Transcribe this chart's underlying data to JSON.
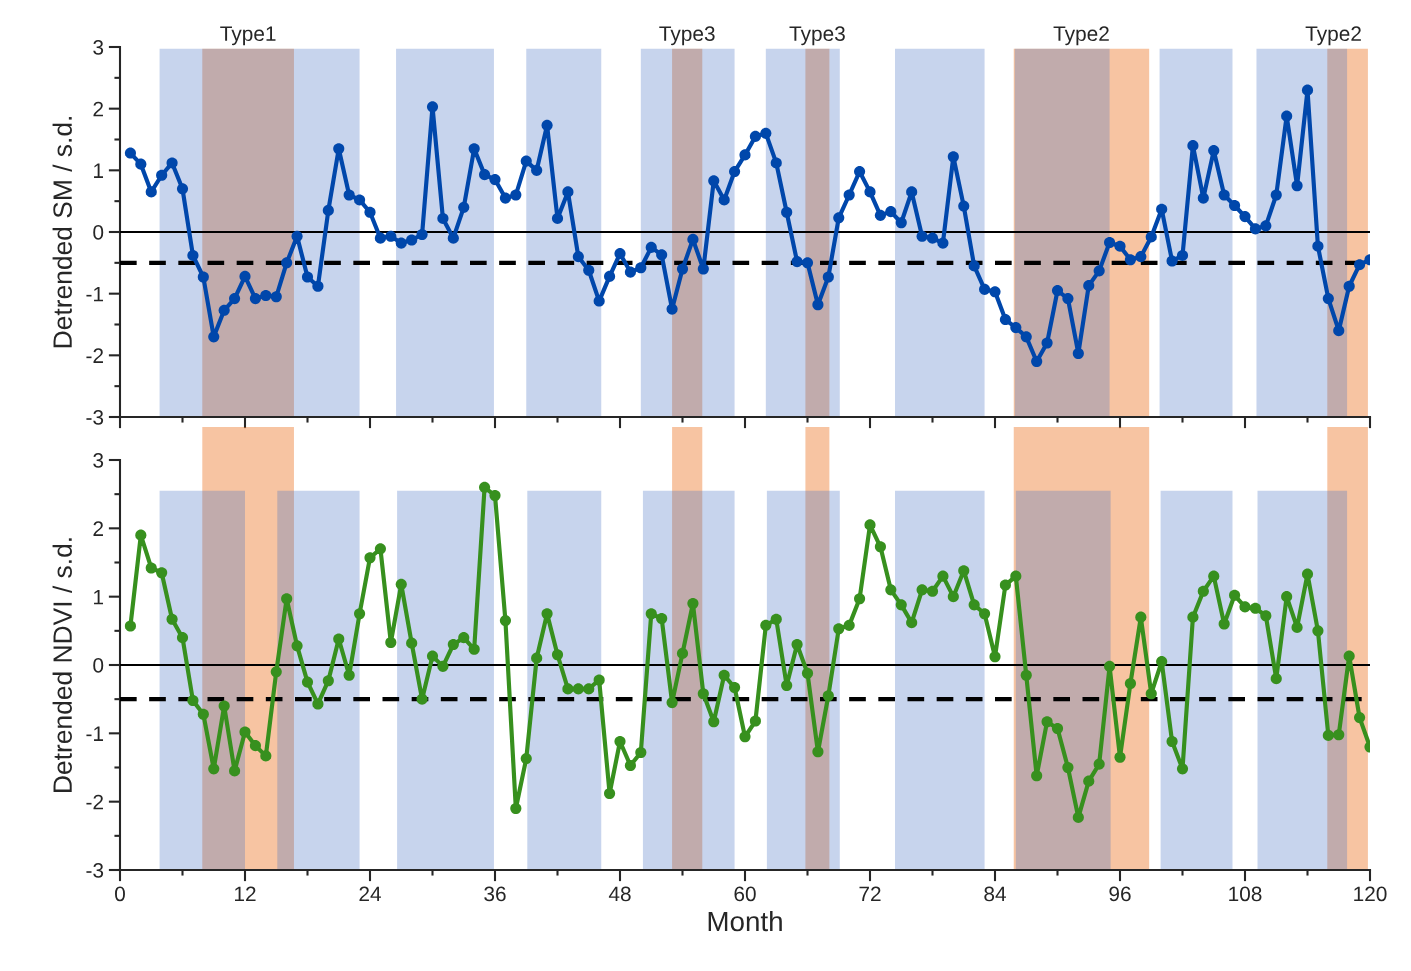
{
  "chart_data": [
    {
      "type": "line",
      "ylabel": "Detrended SM / s.d.",
      "xlim": [
        0,
        120
      ],
      "xticks": [
        0,
        12,
        24,
        36,
        48,
        60,
        72,
        84,
        96,
        108,
        120
      ],
      "ylim": [
        -3,
        3
      ],
      "yticks": [
        -3,
        -2,
        -1,
        0,
        1,
        2,
        3
      ],
      "tick_labels": "y",
      "marker": "circle",
      "line_style": "solid",
      "grid": false,
      "legend": false,
      "x": [
        1,
        2,
        3,
        4,
        5,
        6,
        7,
        8,
        9,
        10,
        11,
        12,
        13,
        14,
        15,
        16,
        17,
        18,
        19,
        20,
        21,
        22,
        23,
        24,
        25,
        26,
        27,
        28,
        29,
        30,
        31,
        32,
        33,
        34,
        35,
        36,
        37,
        38,
        39,
        40,
        41,
        42,
        43,
        44,
        45,
        46,
        47,
        48,
        49,
        50,
        51,
        52,
        53,
        54,
        55,
        56,
        57,
        58,
        59,
        60,
        61,
        62,
        63,
        64,
        65,
        66,
        67,
        68,
        69,
        70,
        71,
        72,
        73,
        74,
        75,
        76,
        77,
        78,
        79,
        80,
        81,
        82,
        83,
        84,
        85,
        86,
        87,
        88,
        89,
        90,
        91,
        92,
        93,
        94,
        95,
        96,
        97,
        98,
        99,
        100,
        101,
        102,
        103,
        104,
        105,
        106,
        107,
        108,
        109,
        110,
        111,
        112,
        113,
        114,
        115,
        116,
        117,
        118,
        119,
        120
      ],
      "series": [
        {
          "color": "#0047ab",
          "values": [
            1.28,
            1.1,
            0.65,
            0.92,
            1.12,
            0.7,
            -0.38,
            -0.73,
            -1.7,
            -1.27,
            -1.08,
            -0.72,
            -1.08,
            -1.03,
            -1.05,
            -0.5,
            -0.07,
            -0.73,
            -0.88,
            0.35,
            1.35,
            0.6,
            0.52,
            0.32,
            -0.1,
            -0.07,
            -0.18,
            -0.13,
            -0.04,
            2.03,
            0.22,
            -0.1,
            0.4,
            1.35,
            0.93,
            0.85,
            0.55,
            0.6,
            1.15,
            1.0,
            1.73,
            0.22,
            0.65,
            -0.4,
            -0.62,
            -1.12,
            -0.72,
            -0.35,
            -0.65,
            -0.58,
            -0.25,
            -0.37,
            -1.25,
            -0.6,
            -0.12,
            -0.6,
            0.83,
            0.52,
            0.98,
            1.25,
            1.55,
            1.6,
            1.12,
            0.32,
            -0.48,
            -0.5,
            -1.18,
            -0.73,
            0.23,
            0.6,
            0.98,
            0.65,
            0.27,
            0.33,
            0.15,
            0.65,
            -0.07,
            -0.1,
            -0.18,
            1.22,
            0.42,
            -0.55,
            -0.93,
            -0.97,
            -1.42,
            -1.55,
            -1.7,
            -2.1,
            -1.8,
            -0.95,
            -1.08,
            -1.97,
            -0.87,
            -0.63,
            -0.17,
            -0.23,
            -0.45,
            -0.4,
            -0.08,
            0.37,
            -0.47,
            -0.38,
            1.4,
            0.55,
            1.32,
            0.6,
            0.43,
            0.25,
            0.05,
            0.1,
            0.6,
            1.88,
            0.75,
            2.3,
            -0.23,
            -1.08,
            -1.6,
            -0.88,
            -0.53,
            -0.45
          ]
        }
      ],
      "ref_lines": [
        {
          "axis": "y",
          "value": 0,
          "color": "#000000",
          "line_style": "solid"
        },
        {
          "axis": "y",
          "value": -0.5,
          "color": "#000000",
          "line_style": "dashed"
        }
      ],
      "bands": [
        {
          "axis": "x",
          "from": 3.8,
          "to": 23.0,
          "color": "#4472c4"
        },
        {
          "axis": "x",
          "from": 26.5,
          "to": 35.9,
          "color": "#4472c4"
        },
        {
          "axis": "x",
          "from": 39.0,
          "to": 46.2,
          "color": "#4472c4"
        },
        {
          "axis": "x",
          "from": 50.0,
          "to": 59.0,
          "color": "#4472c4"
        },
        {
          "axis": "x",
          "from": 62.0,
          "to": 69.1,
          "color": "#4472c4"
        },
        {
          "axis": "x",
          "from": 74.4,
          "to": 83.0,
          "color": "#4472c4"
        },
        {
          "axis": "x",
          "from": 85.9,
          "to": 95.0,
          "color": "#4472c4"
        },
        {
          "axis": "x",
          "from": 99.8,
          "to": 106.8,
          "color": "#4472c4"
        },
        {
          "axis": "x",
          "from": 109.1,
          "to": 117.8,
          "color": "#4472c4"
        },
        {
          "axis": "x",
          "from": 7.9,
          "to": 16.7,
          "color": "#ed7d31"
        },
        {
          "axis": "x",
          "from": 53.0,
          "to": 55.9,
          "color": "#ed7d31"
        },
        {
          "axis": "x",
          "from": 65.8,
          "to": 68.1,
          "color": "#ed7d31"
        },
        {
          "axis": "x",
          "from": 85.8,
          "to": 98.8,
          "color": "#ed7d31"
        },
        {
          "axis": "x",
          "from": 115.9,
          "to": 119.8,
          "color": "#ed7d31"
        }
      ],
      "annotations": [
        "Type1",
        "Type3",
        "Type3",
        "Type2",
        "Type2"
      ]
    },
    {
      "type": "line",
      "ylabel": "Detrended NDVI / s.d.",
      "xlabel": "Month",
      "xlim": [
        0,
        120
      ],
      "xticks": [
        0,
        12,
        24,
        36,
        48,
        60,
        72,
        84,
        96,
        108,
        120
      ],
      "ylim": [
        -3,
        3
      ],
      "yticks": [
        -3,
        -2,
        -1,
        0,
        1,
        2,
        3
      ],
      "marker": "circle",
      "line_style": "solid",
      "grid": false,
      "legend": false,
      "x": [
        1,
        2,
        3,
        4,
        5,
        6,
        7,
        8,
        9,
        10,
        11,
        12,
        13,
        14,
        15,
        16,
        17,
        18,
        19,
        20,
        21,
        22,
        23,
        24,
        25,
        26,
        27,
        28,
        29,
        30,
        31,
        32,
        33,
        34,
        35,
        36,
        37,
        38,
        39,
        40,
        41,
        42,
        43,
        44,
        45,
        46,
        47,
        48,
        49,
        50,
        51,
        52,
        53,
        54,
        55,
        56,
        57,
        58,
        59,
        60,
        61,
        62,
        63,
        64,
        65,
        66,
        67,
        68,
        69,
        70,
        71,
        72,
        73,
        74,
        75,
        76,
        77,
        78,
        79,
        80,
        81,
        82,
        83,
        84,
        85,
        86,
        87,
        88,
        89,
        90,
        91,
        92,
        93,
        94,
        95,
        96,
        97,
        98,
        99,
        100,
        101,
        102,
        103,
        104,
        105,
        106,
        107,
        108,
        109,
        110,
        111,
        112,
        113,
        114,
        115,
        116,
        117,
        118,
        119,
        120
      ],
      "series": [
        {
          "color": "#37901e",
          "values": [
            0.57,
            1.9,
            1.42,
            1.35,
            0.67,
            0.4,
            -0.52,
            -0.72,
            -1.52,
            -0.6,
            -1.55,
            -0.98,
            -1.18,
            -1.33,
            -0.1,
            0.97,
            0.28,
            -0.25,
            -0.57,
            -0.23,
            0.38,
            -0.15,
            0.75,
            1.57,
            1.7,
            0.33,
            1.18,
            0.32,
            -0.5,
            0.13,
            -0.02,
            0.3,
            0.4,
            0.23,
            2.6,
            2.48,
            0.65,
            -2.1,
            -1.37,
            0.1,
            0.75,
            0.15,
            -0.35,
            -0.35,
            -0.35,
            -0.22,
            -1.88,
            -1.12,
            -1.47,
            -1.28,
            0.75,
            0.68,
            -0.55,
            0.17,
            0.9,
            -0.42,
            -0.83,
            -0.15,
            -0.33,
            -1.05,
            -0.82,
            0.58,
            0.67,
            -0.3,
            0.3,
            -0.12,
            -1.27,
            -0.45,
            0.53,
            0.58,
            0.97,
            2.05,
            1.73,
            1.1,
            0.88,
            0.62,
            1.1,
            1.08,
            1.3,
            1.0,
            1.38,
            0.88,
            0.75,
            0.12,
            1.17,
            1.3,
            -0.15,
            -1.62,
            -0.83,
            -0.93,
            -1.5,
            -2.23,
            -1.7,
            -1.45,
            -0.02,
            -1.35,
            -0.27,
            0.7,
            -0.42,
            0.05,
            -1.12,
            -1.52,
            0.7,
            1.08,
            1.3,
            0.6,
            1.02,
            0.85,
            0.83,
            0.72,
            -0.2,
            1.0,
            0.55,
            1.33,
            0.5,
            -1.03,
            -1.02,
            0.13,
            -0.77,
            -1.2
          ]
        }
      ],
      "ref_lines": [
        {
          "axis": "y",
          "value": 0,
          "color": "#000000",
          "line_style": "solid"
        },
        {
          "axis": "y",
          "value": -0.5,
          "color": "#000000",
          "line_style": "dashed"
        }
      ],
      "bands": [
        {
          "axis": "x",
          "from": 3.8,
          "to": 12.0,
          "color": "#4472c4"
        },
        {
          "axis": "x",
          "from": 15.1,
          "to": 23.0,
          "color": "#4472c4"
        },
        {
          "axis": "x",
          "from": 26.6,
          "to": 35.9,
          "color": "#4472c4"
        },
        {
          "axis": "x",
          "from": 39.1,
          "to": 46.2,
          "color": "#4472c4"
        },
        {
          "axis": "x",
          "from": 50.2,
          "to": 59.0,
          "color": "#4472c4"
        },
        {
          "axis": "x",
          "from": 62.1,
          "to": 69.1,
          "color": "#4472c4"
        },
        {
          "axis": "x",
          "from": 74.4,
          "to": 83.0,
          "color": "#4472c4"
        },
        {
          "axis": "x",
          "from": 86.0,
          "to": 95.1,
          "color": "#4472c4"
        },
        {
          "axis": "x",
          "from": 99.9,
          "to": 106.8,
          "color": "#4472c4"
        },
        {
          "axis": "x",
          "from": 109.2,
          "to": 117.8,
          "color": "#4472c4"
        },
        {
          "axis": "x",
          "from": 7.9,
          "to": 16.7,
          "color": "#ed7d31"
        },
        {
          "axis": "x",
          "from": 53.0,
          "to": 55.9,
          "color": "#ed7d31"
        },
        {
          "axis": "x",
          "from": 65.8,
          "to": 68.1,
          "color": "#ed7d31"
        },
        {
          "axis": "x",
          "from": 85.8,
          "to": 98.8,
          "color": "#ed7d31"
        },
        {
          "axis": "x",
          "from": 115.9,
          "to": 119.8,
          "color": "#ed7d31"
        }
      ]
    }
  ]
}
